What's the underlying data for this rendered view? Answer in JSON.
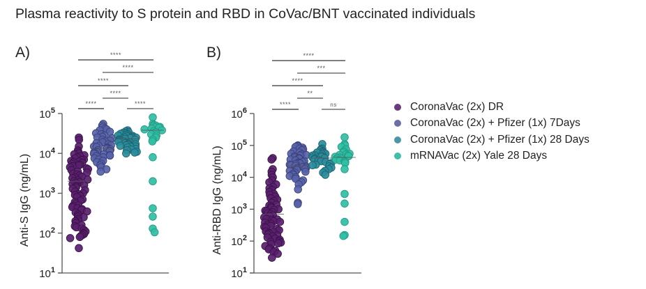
{
  "chart_data": {
    "type": "scatter",
    "title": "Plasma reactivity to S protein and RBD in CoVac/BNT vaccinated individuals",
    "legend_position": "right",
    "legend": [
      {
        "label": "CoronaVac (2x) DR",
        "color": "#6b3a7d"
      },
      {
        "label": "CoronaVac (2x) + Pfizer (1x) 7Days",
        "color": "#6a6fa8"
      },
      {
        "label": "CoronaVac  (2x) + Pfizer (1x) 28 Days",
        "color": "#4b97a8"
      },
      {
        "label": "mRNAVac (2x) Yale 28 Days",
        "color": "#3fbfa6"
      }
    ],
    "series_colors": {
      "fill": [
        "#5a1f6e",
        "#5862a8",
        "#2a8c9c",
        "#2fbfa4"
      ],
      "stroke": [
        "#3a1248",
        "#3a427a",
        "#1d6470",
        "#259a86"
      ]
    },
    "panels": [
      {
        "label": "A)",
        "ylabel": "Anti-S IgG (ng/mL)",
        "yscale": "log",
        "ylim": [
          10,
          100000
        ],
        "yticks": [
          {
            "base": "10",
            "exp": "1"
          },
          {
            "base": "10",
            "exp": "2"
          },
          {
            "base": "10",
            "exp": "3"
          },
          {
            "base": "10",
            "exp": "4"
          },
          {
            "base": "10",
            "exp": "5"
          }
        ],
        "medians": [
          2000,
          13000,
          23000,
          38000
        ],
        "groups": [
          [
            25000,
            22000,
            15000,
            12000,
            11000,
            10000,
            9500,
            9000,
            8500,
            8000,
            7500,
            7000,
            6800,
            6500,
            6200,
            6000,
            5800,
            5500,
            5200,
            5000,
            4800,
            4500,
            4200,
            4000,
            3800,
            3500,
            3300,
            3100,
            3000,
            2800,
            2600,
            2500,
            2400,
            2200,
            2100,
            2000,
            1900,
            1800,
            1700,
            1600,
            1500,
            1400,
            1300,
            1200,
            1100,
            1000,
            950,
            900,
            850,
            800,
            700,
            650,
            600,
            550,
            500,
            480,
            450,
            420,
            400,
            380,
            350,
            330,
            300,
            280,
            260,
            250,
            230,
            210,
            200,
            180,
            160,
            150,
            140,
            130,
            120,
            110,
            100,
            95,
            90,
            85,
            80,
            75,
            42
          ],
          [
            55000,
            50000,
            45000,
            42000,
            40000,
            38000,
            35000,
            32000,
            30000,
            28000,
            26000,
            25000,
            24000,
            22000,
            21000,
            20000,
            19000,
            18000,
            17000,
            16000,
            15500,
            15000,
            14500,
            14000,
            13500,
            13000,
            12500,
            12000,
            11500,
            11000,
            10500,
            10000,
            9800,
            9500,
            9000,
            8800,
            8500,
            8000,
            7500,
            7000,
            6500,
            6000,
            5500,
            5000,
            4500,
            4000,
            3500
          ],
          [
            38000,
            36000,
            34000,
            33000,
            32000,
            31000,
            30000,
            29000,
            28000,
            27500,
            27000,
            26000,
            25500,
            25000,
            24500,
            24000,
            23500,
            23000,
            22500,
            22000,
            21500,
            21000,
            20500,
            20000,
            19500,
            19000,
            18500,
            18000,
            17500,
            17000,
            16500,
            16000,
            15500,
            15000,
            14500,
            14000,
            13000,
            12500,
            12000,
            11000,
            10500,
            10000
          ],
          [
            80000,
            55000,
            52000,
            50000,
            48000,
            46000,
            45000,
            44000,
            42000,
            40000,
            38000,
            36000,
            34000,
            30000,
            28000,
            25000,
            22000,
            20000,
            8000,
            2000,
            420,
            260,
            130,
            105
          ]
        ],
        "significance": [
          {
            "from": 0,
            "to": 3,
            "label": "****"
          },
          {
            "from": 1,
            "to": 3,
            "label": "****"
          },
          {
            "from": 0,
            "to": 2,
            "label": "****"
          },
          {
            "from": 1,
            "to": 2,
            "label": "****"
          },
          {
            "from": 0,
            "to": 1,
            "label": "****"
          },
          {
            "from": 2,
            "to": 3,
            "label": "****"
          }
        ]
      },
      {
        "label": "B)",
        "ylabel": "Anti-RBD IgG (ng/mL)",
        "yscale": "log",
        "ylim": [
          10,
          1000000
        ],
        "yticks": [
          {
            "base": "10",
            "exp": "1"
          },
          {
            "base": "10",
            "exp": "2"
          },
          {
            "base": "10",
            "exp": "3"
          },
          {
            "base": "10",
            "exp": "4"
          },
          {
            "base": "10",
            "exp": "5"
          },
          {
            "base": "10",
            "exp": "6"
          }
        ],
        "medians": [
          700,
          23000,
          40000,
          42000
        ],
        "groups": [
          [
            40000,
            36000,
            18000,
            15000,
            12000,
            10000,
            8000,
            7000,
            6000,
            5000,
            4500,
            4000,
            3500,
            3000,
            2800,
            2500,
            2200,
            2000,
            1800,
            1600,
            1400,
            1300,
            1200,
            1100,
            1000,
            950,
            900,
            850,
            800,
            750,
            700,
            650,
            600,
            550,
            500,
            480,
            450,
            420,
            400,
            380,
            350,
            320,
            300,
            280,
            260,
            240,
            220,
            200,
            190,
            180,
            170,
            160,
            150,
            140,
            130,
            120,
            110,
            100,
            95,
            90,
            85,
            80,
            70,
            60,
            55,
            50,
            45,
            40,
            30
          ],
          [
            100000,
            95000,
            90000,
            85000,
            80000,
            75000,
            70000,
            65000,
            60000,
            55000,
            52000,
            50000,
            48000,
            45000,
            42000,
            40000,
            38000,
            36000,
            34000,
            32000,
            30000,
            29000,
            28000,
            27000,
            26000,
            25000,
            24000,
            23000,
            22000,
            21000,
            20000,
            19000,
            18000,
            17000,
            16000,
            15000,
            14000,
            13000,
            12000,
            11000,
            10000,
            9000,
            8000,
            7000,
            6000,
            4200,
            1600,
            1450
          ],
          [
            110000,
            80000,
            75000,
            70000,
            65000,
            62000,
            60000,
            58000,
            55000,
            52000,
            50000,
            48000,
            46000,
            44000,
            42000,
            40000,
            38000,
            36000,
            34000,
            32000,
            30000,
            28000,
            26000,
            25000,
            24000,
            22000,
            20000,
            18000,
            16000,
            14000,
            12000
          ],
          [
            180000,
            110000,
            100000,
            90000,
            75000,
            65000,
            60000,
            55000,
            52000,
            50000,
            48000,
            46000,
            44000,
            42000,
            40000,
            38000,
            36000,
            34000,
            32000,
            30000,
            28000,
            18000,
            3000,
            1500,
            400,
            155,
            145
          ]
        ],
        "significance": [
          {
            "from": 0,
            "to": 3,
            "label": "****"
          },
          {
            "from": 1,
            "to": 3,
            "label": "***"
          },
          {
            "from": 0,
            "to": 2,
            "label": "****"
          },
          {
            "from": 1,
            "to": 2,
            "label": "**"
          },
          {
            "from": 0,
            "to": 1,
            "label": "****"
          },
          {
            "from": 2,
            "to": 3,
            "label": "ns"
          }
        ]
      }
    ]
  }
}
